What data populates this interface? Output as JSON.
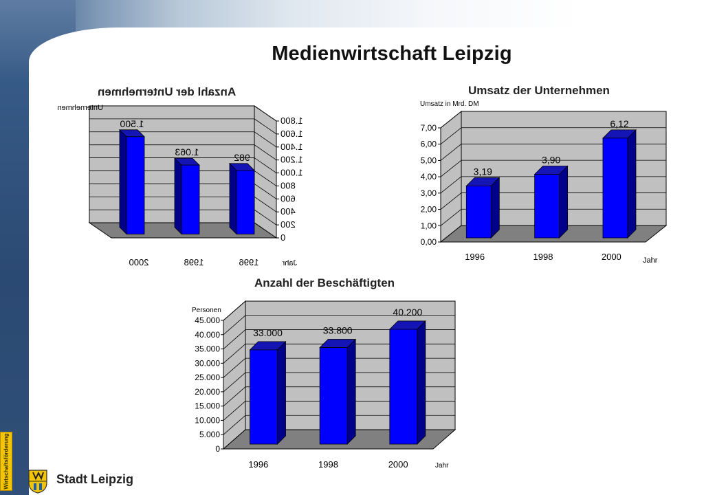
{
  "page_title": "Medienwirtschaft Leipzig",
  "side_label": "Wirtschaftsförderung",
  "logo": {
    "text": "Stadt Leipzig",
    "icon": "leipzig-lion-crest-icon"
  },
  "colors": {
    "bar_front": "#0000ff",
    "bar_side": "#00008b",
    "bar_top": "#1515b5",
    "plot_wall": "#c0c0c0",
    "plot_floor": "#808080"
  },
  "chart_data": [
    {
      "type": "bar",
      "title": "Anzahl der Unternehmen",
      "ylabel": "Unternehmen",
      "xlabel": "Jahr",
      "mirrored": true,
      "categories": [
        "1996",
        "1998",
        "2000"
      ],
      "values": [
        982,
        1063,
        1500
      ],
      "data_labels": [
        "982",
        "1.063",
        "1.500"
      ],
      "ylim": [
        0,
        1800
      ],
      "yticks": [
        0,
        200,
        400,
        600,
        800,
        1000,
        1200,
        1400,
        1600,
        1800
      ],
      "ytick_labels": [
        "0",
        "200",
        "400",
        "600",
        "800",
        "1.000",
        "1.200",
        "1.400",
        "1.600",
        "1.800"
      ],
      "grid": true
    },
    {
      "type": "bar",
      "title": "Umsatz der Unternehmen",
      "ylabel": "Umsatz in Mrd. DM",
      "xlabel": "Jahr",
      "mirrored": false,
      "categories": [
        "1996",
        "1998",
        "2000"
      ],
      "values": [
        3.19,
        3.9,
        6.12
      ],
      "data_labels": [
        "3,19",
        "3,90",
        "6,12"
      ],
      "ylim": [
        0,
        7
      ],
      "yticks": [
        0,
        1,
        2,
        3,
        4,
        5,
        6,
        7
      ],
      "ytick_labels": [
        "0,00",
        "1,00",
        "2,00",
        "3,00",
        "4,00",
        "5,00",
        "6,00",
        "7,00"
      ],
      "grid": true
    },
    {
      "type": "bar",
      "title": "Anzahl der Beschäftigten",
      "ylabel": "Personen",
      "xlabel": "Jahr",
      "mirrored": false,
      "categories": [
        "1996",
        "1998",
        "2000"
      ],
      "values": [
        33000,
        33800,
        40200
      ],
      "data_labels": [
        "33.000",
        "33.800",
        "40.200"
      ],
      "ylim": [
        0,
        45000
      ],
      "yticks": [
        0,
        5000,
        10000,
        15000,
        20000,
        25000,
        30000,
        35000,
        40000,
        45000
      ],
      "ytick_labels": [
        "0",
        "5.000",
        "10.000",
        "15.000",
        "20.000",
        "25.000",
        "30.000",
        "35.000",
        "40.000",
        "45.000"
      ],
      "grid": true
    }
  ]
}
